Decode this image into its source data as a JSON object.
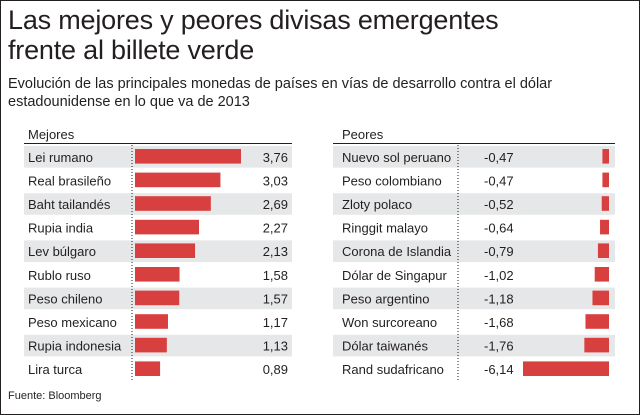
{
  "title_line1": "Las mejores y peores divisas emergentes",
  "title_line2": "frente al billete verde",
  "subtitle_line1": "Evolución de las principales monedas de países en vías de desarrollo contra el dólar",
  "subtitle_line2": "estadounidense en lo que va de 2013",
  "source": "Fuente: Bloomberg",
  "colors": {
    "bar": "#d8403f",
    "stripe": "#e6e7e8",
    "text": "#231f20"
  },
  "chart_data": [
    {
      "type": "bar",
      "orientation": "horizontal",
      "title": "Mejores",
      "categories": [
        "Lei rumano",
        "Real brasileño",
        "Baht tailandés",
        "Rupia india",
        "Lev búlgaro",
        "Rublo ruso",
        "Peso chileno",
        "Peso mexicano",
        "Rupia indonesia",
        "Lira turca"
      ],
      "values": [
        3.76,
        3.03,
        2.69,
        2.27,
        2.13,
        1.58,
        1.57,
        1.17,
        1.13,
        0.89
      ],
      "value_labels": [
        "3,76",
        "3,03",
        "2,69",
        "2,27",
        "2,13",
        "1,58",
        "1,57",
        "1,17",
        "1,13",
        "0,89"
      ],
      "xlim": [
        0,
        3.76
      ],
      "grid": false,
      "axis_line": "dotted"
    },
    {
      "type": "bar",
      "orientation": "horizontal",
      "title": "Peores",
      "categories": [
        "Nuevo sol peruano",
        "Peso colombiano",
        "Zloty polaco",
        "Ringgit malayo",
        "Corona de Islandia",
        "Dólar de Singapur",
        "Peso argentino",
        "Won surcoreano",
        "Dólar taiwanés",
        "Rand sudafricano"
      ],
      "values": [
        -0.47,
        -0.47,
        -0.52,
        -0.64,
        -0.79,
        -1.02,
        -1.18,
        -1.68,
        -1.76,
        -6.14
      ],
      "value_labels": [
        "-0,47",
        "-0,47",
        "-0,52",
        "-0,64",
        "-0,79",
        "-1,02",
        "-1,18",
        "-1,68",
        "-1,76",
        "-6,14"
      ],
      "xlim": [
        -6.14,
        0
      ],
      "grid": false,
      "axis_line": "dotted"
    }
  ]
}
